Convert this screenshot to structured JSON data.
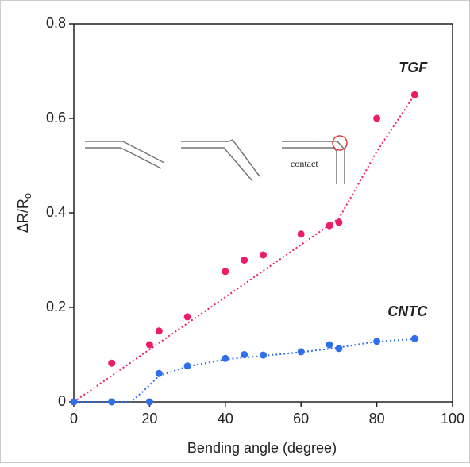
{
  "chart_data": {
    "type": "scatter",
    "xlabel": "Bending angle (degree)",
    "ylabel": "ΔR/R",
    "ylabel_sub": "o",
    "annotation": "contact",
    "xlim": [
      0,
      100
    ],
    "xticks": [
      0,
      20,
      40,
      60,
      80,
      100
    ],
    "ylim": [
      0,
      0.8
    ],
    "yticks": [
      0,
      0.2,
      0.4,
      0.6,
      0.8
    ],
    "series": [
      {
        "name": "TGF",
        "color": "#ec1c6b",
        "x": [
          0,
          10,
          20,
          22.5,
          30,
          40,
          45,
          50,
          60,
          67.5,
          70,
          80,
          90
        ],
        "values": [
          0,
          0.082,
          0.121,
          0.15,
          0.18,
          0.276,
          0.3,
          0.311,
          0.355,
          0.373,
          0.38,
          0.6,
          0.65
        ]
      },
      {
        "name": "CNTC",
        "color": "#2f6fea",
        "x": [
          0,
          10,
          20,
          22.5,
          30,
          40,
          45,
          50,
          60,
          67.5,
          70,
          80,
          90
        ],
        "values": [
          0,
          0,
          0,
          0.06,
          0.076,
          0.092,
          0.1,
          0.099,
          0.106,
          0.121,
          0.113,
          0.128,
          0.134
        ]
      }
    ],
    "fits": [
      {
        "color": "#ec1c6b",
        "x": [
          0,
          70,
          80,
          90
        ],
        "values": [
          0,
          0.388,
          0.53,
          0.65
        ]
      },
      {
        "color": "#2f6fea",
        "x": [
          0,
          15,
          18,
          22.5,
          30,
          40,
          60,
          70,
          80,
          90
        ],
        "values": [
          0,
          0,
          0.02,
          0.055,
          0.075,
          0.09,
          0.105,
          0.115,
          0.128,
          0.133
        ]
      }
    ]
  }
}
